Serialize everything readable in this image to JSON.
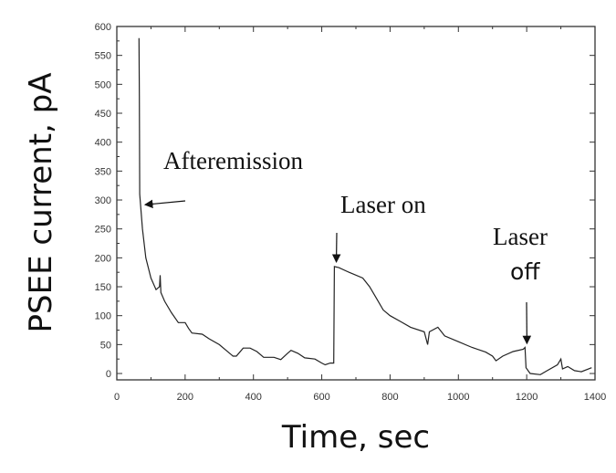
{
  "chart_data": {
    "type": "line",
    "title": "",
    "xlabel": "Time, sec",
    "ylabel": "PSEE current, pA",
    "xlim": [
      0,
      1400
    ],
    "ylim": [
      -11,
      600
    ],
    "xticks": [
      0,
      200,
      400,
      600,
      800,
      1000,
      1200,
      1400
    ],
    "yticks": [
      0,
      50,
      100,
      150,
      200,
      250,
      300,
      350,
      400,
      450,
      500,
      550,
      600
    ],
    "grid": false,
    "series": [
      {
        "color": "#222222",
        "x": [
          65,
          66,
          67,
          75,
          85,
          100,
          115,
          125,
          127,
          129,
          140,
          160,
          180,
          200,
          210,
          220,
          250,
          270,
          300,
          320,
          340,
          350,
          370,
          390,
          410,
          430,
          460,
          480,
          500,
          510,
          530,
          550,
          580,
          600,
          610,
          625,
          635,
          637,
          650,
          680,
          720,
          740,
          760,
          780,
          800,
          830,
          860,
          900,
          910,
          915,
          940,
          960,
          1000,
          1040,
          1080,
          1100,
          1110,
          1130,
          1160,
          1190,
          1195,
          1198,
          1210,
          1240,
          1260,
          1290,
          1300,
          1305,
          1320,
          1340,
          1360,
          1390
        ],
        "y": [
          580,
          480,
          310,
          250,
          200,
          165,
          145,
          150,
          170,
          140,
          125,
          105,
          88,
          88,
          78,
          70,
          68,
          60,
          50,
          40,
          30,
          30,
          44,
          44,
          38,
          28,
          28,
          24,
          35,
          40,
          35,
          27,
          25,
          18,
          15,
          18,
          18,
          185,
          183,
          175,
          165,
          150,
          130,
          110,
          100,
          90,
          80,
          72,
          50,
          72,
          80,
          65,
          55,
          45,
          37,
          30,
          22,
          30,
          38,
          42,
          45,
          10,
          0,
          -2,
          5,
          15,
          25,
          8,
          12,
          5,
          3,
          10
        ]
      }
    ],
    "annotations": [
      {
        "text": "Afteremission",
        "arrow_to": [
          75,
          295
        ]
      },
      {
        "text": "Laser on",
        "arrow_to": [
          640,
          193
        ]
      },
      {
        "text_line1": "Laser",
        "text_line2": "off",
        "arrow_to": [
          1198,
          52
        ]
      }
    ]
  }
}
